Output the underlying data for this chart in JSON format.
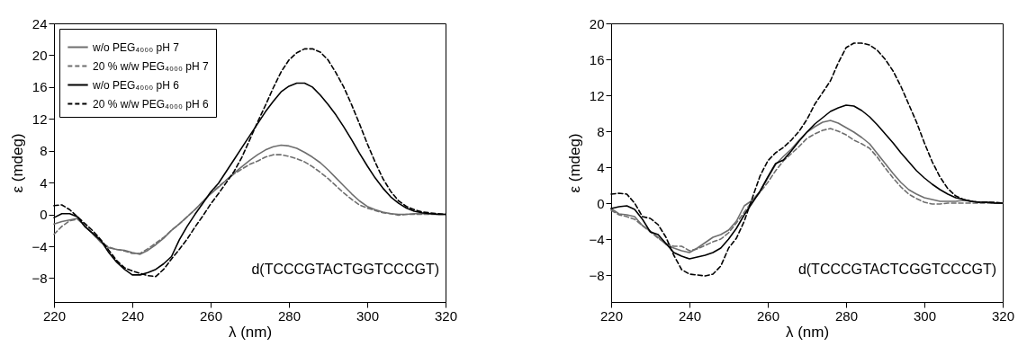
{
  "chart_data": [
    {
      "type": "line",
      "xlabel": "λ (nm)",
      "ylabel": "ε (mdeg)",
      "xlim": [
        220,
        320
      ],
      "xticks": [
        220,
        240,
        260,
        280,
        300,
        320
      ],
      "ylim": [
        -11,
        24
      ],
      "yticks": [
        -8,
        -4,
        0,
        4,
        8,
        12,
        16,
        20,
        24
      ],
      "legend": "top left",
      "annotations": [
        "d(TCCCGTACTGGTCCCGT)"
      ],
      "x": [
        220,
        222,
        224,
        226,
        228,
        230,
        232,
        234,
        236,
        238,
        240,
        242,
        244,
        246,
        248,
        250,
        252,
        254,
        256,
        258,
        260,
        262,
        264,
        266,
        268,
        270,
        272,
        274,
        276,
        278,
        280,
        282,
        284,
        286,
        288,
        290,
        292,
        294,
        296,
        298,
        300,
        302,
        304,
        306,
        308,
        310,
        312,
        314,
        316,
        318,
        320
      ],
      "series": [
        {
          "name": "w/o PEG₄₀₀₀ pH 7",
          "color": "#6e6e6e",
          "line_style": "solid",
          "values": [
            -1.2,
            -0.9,
            -0.7,
            -0.5,
            -1.5,
            -2.5,
            -3.5,
            -4.2,
            -4.4,
            -4.5,
            -4.8,
            -5.0,
            -4.5,
            -3.8,
            -3.0,
            -2.0,
            -1.2,
            -0.3,
            0.6,
            1.6,
            2.6,
            3.4,
            4.3,
            5.2,
            6.0,
            6.8,
            7.5,
            8.1,
            8.5,
            8.7,
            8.6,
            8.3,
            7.8,
            7.2,
            6.5,
            5.6,
            4.6,
            3.6,
            2.6,
            1.7,
            1.0,
            0.6,
            0.3,
            0.1,
            0.0,
            0.0,
            0.1,
            0.1,
            0.1,
            0.0,
            0.0
          ]
        },
        {
          "name": "20 % w/w PEG₄₀₀₀ pH 7",
          "color": "#6e6e6e",
          "line_style": "dashed",
          "values": [
            -2.5,
            -1.5,
            -0.8,
            -0.6,
            -1.5,
            -2.5,
            -3.5,
            -4.1,
            -4.4,
            -4.6,
            -4.9,
            -4.9,
            -4.3,
            -3.6,
            -2.9,
            -2.0,
            -1.2,
            -0.3,
            0.6,
            1.6,
            2.6,
            3.5,
            4.3,
            5.1,
            5.7,
            6.3,
            6.7,
            7.2,
            7.5,
            7.5,
            7.3,
            7.0,
            6.6,
            6.0,
            5.3,
            4.5,
            3.6,
            2.7,
            1.9,
            1.2,
            0.8,
            0.5,
            0.2,
            0.1,
            -0.1,
            0.0,
            0.0,
            0.0,
            0.0,
            0.0,
            0.0
          ]
        },
        {
          "name": "w/o PEG₄₀₀₀ pH 6",
          "color": "#000000",
          "line_style": "solid",
          "values": [
            -0.4,
            0.1,
            0.1,
            -0.3,
            -1.6,
            -2.4,
            -3.3,
            -4.8,
            -6.0,
            -6.9,
            -7.6,
            -7.6,
            -7.3,
            -6.9,
            -6.2,
            -5.3,
            -3.2,
            -1.5,
            0.0,
            1.4,
            2.8,
            3.9,
            5.4,
            6.9,
            8.4,
            9.9,
            11.4,
            12.9,
            14.2,
            15.4,
            16.1,
            16.5,
            16.5,
            16.0,
            15.0,
            13.8,
            12.5,
            11.0,
            9.4,
            7.7,
            6.1,
            4.6,
            3.3,
            2.2,
            1.4,
            0.8,
            0.4,
            0.2,
            0.1,
            0.0,
            0.0
          ]
        },
        {
          "name": "20 % w/w PEG₄₀₀₀ pH 6",
          "color": "#000000",
          "line_style": "dashed",
          "values": [
            1.1,
            1.2,
            0.6,
            -0.3,
            -1.2,
            -2.1,
            -3.2,
            -4.5,
            -5.8,
            -6.7,
            -7.1,
            -7.4,
            -7.7,
            -7.8,
            -6.9,
            -5.6,
            -4.4,
            -3.1,
            -1.6,
            -0.2,
            1.3,
            2.6,
            4.0,
            5.4,
            7.2,
            9.4,
            11.6,
            13.7,
            15.9,
            17.9,
            19.4,
            20.3,
            20.8,
            20.8,
            20.4,
            19.4,
            17.8,
            16.0,
            13.8,
            11.4,
            8.9,
            6.6,
            4.5,
            2.9,
            1.7,
            1.0,
            0.6,
            0.3,
            0.2,
            0.1,
            0.0
          ]
        }
      ]
    },
    {
      "type": "line",
      "xlabel": "λ (nm)",
      "ylabel": "ε (mdeg)",
      "xlim": [
        220,
        320
      ],
      "xticks": [
        220,
        240,
        260,
        280,
        300,
        320
      ],
      "ylim": [
        -11,
        20
      ],
      "yticks": [
        -8,
        -4,
        0,
        4,
        8,
        12,
        16,
        20
      ],
      "legend": "top left",
      "annotations": [
        "d(TCCCGTACTCGGTCCCGT)"
      ],
      "x": [
        220,
        222,
        224,
        226,
        228,
        230,
        232,
        234,
        236,
        238,
        240,
        242,
        244,
        246,
        248,
        250,
        252,
        254,
        256,
        258,
        260,
        262,
        264,
        266,
        268,
        270,
        272,
        274,
        276,
        278,
        280,
        282,
        284,
        286,
        288,
        290,
        292,
        294,
        296,
        298,
        300,
        302,
        304,
        306,
        308,
        310,
        312,
        314,
        316,
        318,
        320
      ],
      "series": [
        {
          "name": "w/o PEG₄₀₀₀ pH 7",
          "color": "#6e6e6e",
          "line_style": "solid",
          "values": [
            -0.6,
            -1.2,
            -1.3,
            -1.5,
            -2.5,
            -3.1,
            -3.8,
            -4.6,
            -5.0,
            -5.3,
            -5.5,
            -5.0,
            -4.4,
            -3.8,
            -3.5,
            -3.0,
            -2.0,
            -0.3,
            0.3,
            1.3,
            2.8,
            4.3,
            5.2,
            6.0,
            7.0,
            7.9,
            8.5,
            9.0,
            9.2,
            8.9,
            8.4,
            7.9,
            7.3,
            6.6,
            5.5,
            4.4,
            3.3,
            2.3,
            1.5,
            1.0,
            0.6,
            0.4,
            0.2,
            0.2,
            0.2,
            0.3,
            0.2,
            0.1,
            0.1,
            0.0,
            0.0
          ]
        },
        {
          "name": "20 % w/w PEG₄₀₀₀ pH 7",
          "color": "#6e6e6e",
          "line_style": "dashed",
          "values": [
            -0.8,
            -1.3,
            -1.5,
            -1.8,
            -2.5,
            -3.2,
            -3.9,
            -4.5,
            -4.8,
            -4.8,
            -5.3,
            -5.1,
            -4.7,
            -4.3,
            -4.0,
            -3.3,
            -2.2,
            -1.0,
            0.2,
            1.2,
            2.3,
            3.6,
            4.7,
            5.5,
            6.3,
            7.2,
            7.7,
            8.1,
            8.3,
            8.0,
            7.6,
            7.0,
            6.6,
            6.1,
            5.1,
            3.9,
            2.8,
            1.8,
            1.0,
            0.5,
            0.1,
            -0.1,
            -0.1,
            0.0,
            0.0,
            0.0,
            0.0,
            0.0,
            0.0,
            0.0,
            0.0
          ]
        },
        {
          "name": "w/o PEG₄₀₀₀ pH 6",
          "color": "#000000",
          "line_style": "solid",
          "values": [
            -0.6,
            -0.4,
            -0.3,
            -0.7,
            -1.8,
            -3.2,
            -3.5,
            -4.5,
            -5.5,
            -5.9,
            -6.2,
            -6.0,
            -5.8,
            -5.5,
            -5.0,
            -4.0,
            -2.8,
            -1.3,
            0.0,
            1.3,
            2.9,
            4.4,
            4.8,
            5.8,
            6.9,
            7.9,
            8.8,
            9.5,
            10.2,
            10.6,
            10.9,
            10.8,
            10.3,
            9.6,
            8.7,
            7.7,
            6.7,
            5.6,
            4.6,
            3.6,
            2.8,
            2.1,
            1.5,
            1.0,
            0.6,
            0.4,
            0.2,
            0.1,
            0.1,
            0.0,
            0.0
          ]
        },
        {
          "name": "20 % w/w PEG₄₀₀₀ pH 6",
          "color": "#000000",
          "line_style": "dashed",
          "values": [
            1.0,
            1.1,
            1.0,
            0.0,
            -1.5,
            -1.7,
            -2.4,
            -3.8,
            -5.8,
            -7.4,
            -7.9,
            -8.0,
            -8.1,
            -7.9,
            -7.0,
            -5.0,
            -3.9,
            -2.0,
            0.5,
            3.0,
            4.7,
            5.6,
            6.2,
            7.0,
            8.0,
            9.3,
            11.0,
            12.3,
            13.6,
            15.6,
            17.3,
            17.8,
            17.8,
            17.6,
            17.0,
            16.0,
            14.7,
            13.0,
            11.0,
            9.0,
            6.7,
            4.6,
            2.9,
            1.6,
            0.8,
            0.4,
            0.2,
            0.1,
            0.1,
            0.1,
            0.0
          ]
        }
      ]
    }
  ]
}
